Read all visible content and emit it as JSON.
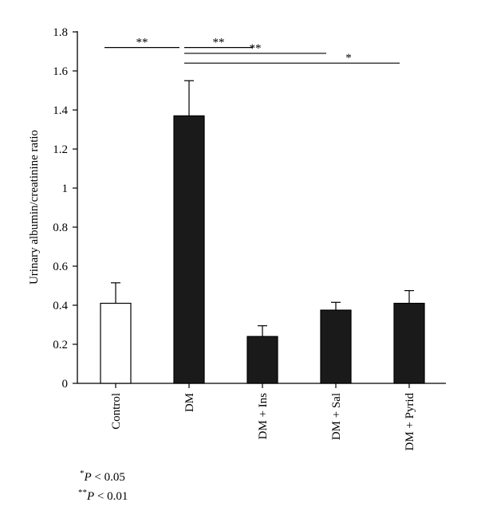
{
  "chart_data": {
    "type": "bar",
    "categories": [
      "Control",
      "DM",
      "DM + Ins",
      "DM + Sal",
      "DM + Pyrid"
    ],
    "values": [
      0.41,
      1.37,
      0.24,
      0.375,
      0.41
    ],
    "errors": [
      0.105,
      0.18,
      0.055,
      0.04,
      0.065
    ],
    "bar_colors": [
      "#ffffff",
      "#1a1a1a",
      "#1a1a1a",
      "#1a1a1a",
      "#1a1a1a"
    ],
    "ylabel": "Urinary albumin/creatinine ratio",
    "ylim": [
      0,
      1.8
    ],
    "yticks": [
      0,
      0.2,
      0.4,
      0.6,
      0.8,
      1,
      1.2,
      1.4,
      1.6,
      1.8
    ],
    "ytick_labels": [
      "0",
      "0.2",
      "0.4",
      "0.6",
      "0.8",
      "1",
      "1.2",
      "1.4",
      "1.6",
      "1.8"
    ],
    "grid": false,
    "significance": [
      {
        "from": 0,
        "to": 1,
        "y": 1.72,
        "label": "**"
      },
      {
        "from": 1,
        "to": 2,
        "y": 1.72,
        "label": "**"
      },
      {
        "from": 1,
        "to": 3,
        "y": 1.69,
        "label": "**"
      },
      {
        "from": 1,
        "to": 4,
        "y": 1.64,
        "label": "*"
      }
    ]
  },
  "footnotes": [
    {
      "stars": "*",
      "text": "P",
      "rest": " < 0.05"
    },
    {
      "stars": "**",
      "text": "P",
      "rest": " < 0.01"
    }
  ]
}
